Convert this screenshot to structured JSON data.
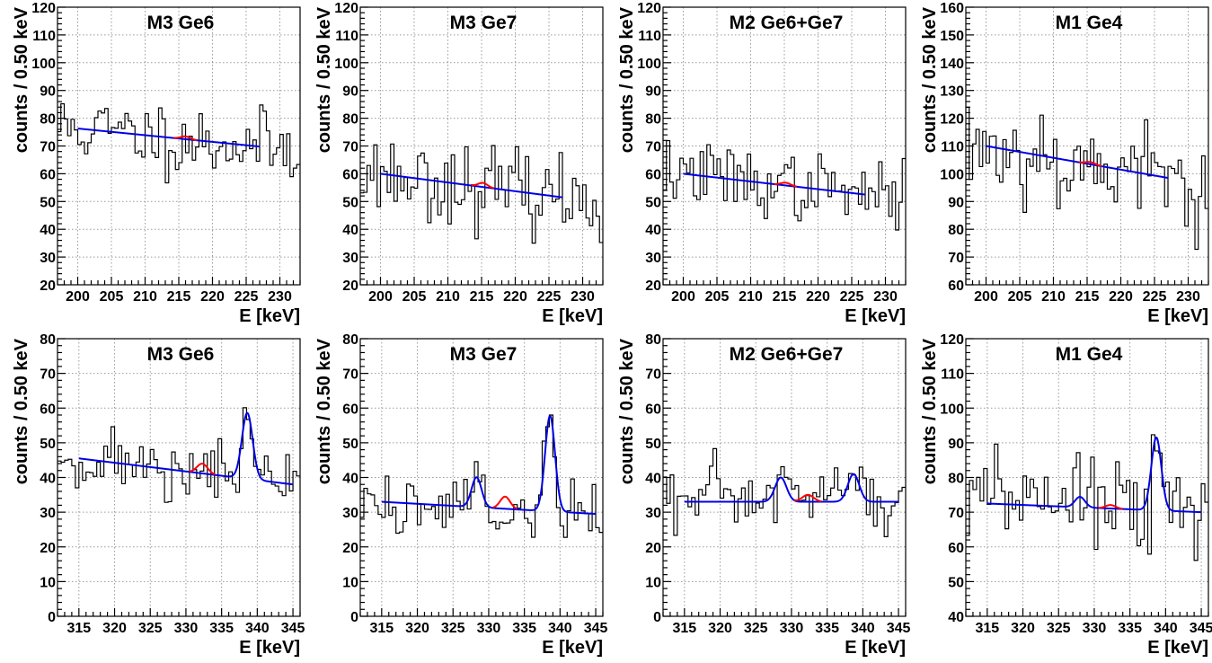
{
  "figure": {
    "xlabel": "E [keV]",
    "ylabel": "counts / 0.50 keV"
  },
  "chart_data": [
    {
      "type": "histogram",
      "title": "M3 Ge6",
      "xlabel": "E [keV]",
      "ylabel": "counts / 0.50 keV",
      "xlim": [
        197,
        233
      ],
      "ylim": [
        20,
        120
      ],
      "grid": true,
      "xticks": [
        200,
        205,
        210,
        215,
        220,
        225,
        230
      ],
      "yticks": [
        20,
        30,
        40,
        50,
        60,
        70,
        80,
        90,
        100,
        110,
        120
      ],
      "seed": 11,
      "noise": 6.5,
      "fit": {
        "range": [
          200,
          227
        ],
        "bg": [
          76.3,
          69.8
        ],
        "peaks": [],
        "signal": {
          "mean": 216,
          "amp": 1.0,
          "sigma": 0.7
        }
      }
    },
    {
      "type": "histogram",
      "title": "M3 Ge7",
      "xlabel": "E [keV]",
      "ylabel": "counts / 0.50 keV",
      "xlim": [
        197,
        233
      ],
      "ylim": [
        20,
        120
      ],
      "grid": true,
      "xticks": [
        200,
        205,
        210,
        215,
        220,
        225,
        230
      ],
      "yticks": [
        20,
        30,
        40,
        50,
        60,
        70,
        80,
        90,
        100,
        110,
        120
      ],
      "seed": 23,
      "noise": 7,
      "fit": {
        "range": [
          200,
          227
        ],
        "bg": [
          60.0,
          51.5
        ],
        "peaks": [],
        "signal": {
          "mean": 215.2,
          "amp": 1.5,
          "sigma": 0.7
        }
      }
    },
    {
      "type": "histogram",
      "title": "M2 Ge6+Ge7",
      "xlabel": "E [keV]",
      "ylabel": "counts / 0.50 keV",
      "xlim": [
        197,
        233
      ],
      "ylim": [
        20,
        120
      ],
      "grid": true,
      "xticks": [
        200,
        205,
        210,
        215,
        220,
        225,
        230
      ],
      "yticks": [
        20,
        30,
        40,
        50,
        60,
        70,
        80,
        90,
        100,
        110,
        120
      ],
      "seed": 37,
      "noise": 6,
      "fit": {
        "range": [
          200,
          227
        ],
        "bg": [
          60.0,
          52.5
        ],
        "peaks": [],
        "signal": {
          "mean": 215.2,
          "amp": 1.0,
          "sigma": 0.7
        }
      }
    },
    {
      "type": "histogram",
      "title": "M1 Ge4",
      "xlabel": "E [keV]",
      "ylabel": "counts / 0.50 keV",
      "xlim": [
        197,
        233
      ],
      "ylim": [
        60,
        160
      ],
      "grid": true,
      "xticks": [
        200,
        205,
        210,
        215,
        220,
        225,
        230
      ],
      "yticks": [
        60,
        70,
        80,
        90,
        100,
        110,
        120,
        130,
        140,
        150,
        160
      ],
      "seed": 53,
      "noise": 9,
      "fit": {
        "range": [
          200,
          227
        ],
        "bg": [
          110.0,
          98.5
        ],
        "peaks": [],
        "signal": {
          "mean": 215.5,
          "amp": 0.8,
          "sigma": 0.7
        }
      }
    },
    {
      "type": "histogram",
      "title": "M3 Ge6",
      "xlabel": "E [keV]",
      "ylabel": "counts / 0.50 keV",
      "xlim": [
        312,
        346
      ],
      "ylim": [
        0,
        80
      ],
      "grid": true,
      "xticks": [
        315,
        320,
        325,
        330,
        335,
        340,
        345
      ],
      "yticks": [
        0,
        10,
        20,
        30,
        40,
        50,
        60,
        70,
        80
      ],
      "seed": 71,
      "noise": 4.5,
      "fit": {
        "range": [
          315,
          345
        ],
        "bg": [
          45.5,
          38.0
        ],
        "peaks": [
          {
            "mean": 338.6,
            "amp": 19,
            "sigma": 0.75
          }
        ],
        "signal": {
          "mean": 332.3,
          "amp": 2.8,
          "sigma": 0.75
        }
      }
    },
    {
      "type": "histogram",
      "title": "M3 Ge7",
      "xlabel": "E [keV]",
      "ylabel": "counts / 0.50 keV",
      "xlim": [
        312,
        346
      ],
      "ylim": [
        0,
        80
      ],
      "grid": true,
      "xticks": [
        315,
        320,
        325,
        330,
        335,
        340,
        345
      ],
      "yticks": [
        0,
        10,
        20,
        30,
        40,
        50,
        60,
        70,
        80
      ],
      "seed": 89,
      "noise": 5,
      "fit": {
        "range": [
          315,
          345
        ],
        "bg": [
          33.0,
          29.5
        ],
        "peaks": [
          {
            "mean": 328.3,
            "amp": 8.6,
            "sigma": 0.7
          },
          {
            "mean": 338.6,
            "amp": 27.5,
            "sigma": 0.7
          }
        ],
        "signal": {
          "mean": 332.3,
          "amp": 3.5,
          "sigma": 0.7
        }
      }
    },
    {
      "type": "histogram",
      "title": "M2 Ge6+Ge7",
      "xlabel": "E [keV]",
      "ylabel": "counts / 0.50 keV",
      "xlim": [
        312,
        346
      ],
      "ylim": [
        0,
        80
      ],
      "grid": true,
      "xticks": [
        315,
        320,
        325,
        330,
        335,
        340,
        345
      ],
      "yticks": [
        0,
        10,
        20,
        30,
        40,
        50,
        60,
        70,
        80
      ],
      "seed": 97,
      "noise": 5,
      "fit": {
        "range": [
          315,
          345
        ],
        "bg": [
          33.0,
          33.0
        ],
        "peaks": [
          {
            "mean": 328.5,
            "amp": 7,
            "sigma": 0.8
          },
          {
            "mean": 338.7,
            "amp": 8,
            "sigma": 0.8
          }
        ],
        "signal": {
          "mean": 332.3,
          "amp": 2.0,
          "sigma": 0.8
        }
      }
    },
    {
      "type": "histogram",
      "title": "M1 Ge4",
      "xlabel": "E [keV]",
      "ylabel": "counts / 0.50 keV",
      "xlim": [
        312,
        346
      ],
      "ylim": [
        40,
        120
      ],
      "grid": true,
      "xticks": [
        315,
        320,
        325,
        330,
        335,
        340,
        345
      ],
      "yticks": [
        40,
        50,
        60,
        70,
        80,
        90,
        100,
        110,
        120
      ],
      "seed": 113,
      "noise": 6,
      "fit": {
        "range": [
          315,
          345
        ],
        "bg": [
          72.5,
          70.0
        ],
        "peaks": [
          {
            "mean": 328.0,
            "amp": 3,
            "sigma": 0.7
          },
          {
            "mean": 338.7,
            "amp": 21,
            "sigma": 0.7
          }
        ],
        "signal": {
          "mean": 332.3,
          "amp": 1.0,
          "sigma": 0.7
        }
      }
    }
  ]
}
